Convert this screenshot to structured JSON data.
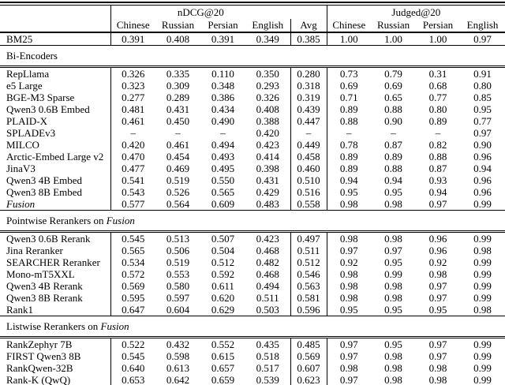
{
  "table": {
    "group_headers": {
      "ndcg": "nDCG@20",
      "judged": "Judged@20"
    },
    "column_headers": [
      "Chinese",
      "Russian",
      "Persian",
      "English",
      "Avg",
      "Chinese",
      "Russian",
      "Persian",
      "English"
    ],
    "baseline_row": {
      "label": "BM25",
      "italic": false,
      "values": [
        "0.391",
        "0.408",
        "0.391",
        "0.349",
        "0.385",
        "1.00",
        "1.00",
        "1.00",
        "0.97"
      ]
    },
    "sections": [
      {
        "title_prefix": "Bi-Encoders",
        "title_italic": "",
        "rows": [
          {
            "label": "RepLlama",
            "italic": false,
            "values": [
              "0.326",
              "0.335",
              "0.110",
              "0.350",
              "0.280",
              "0.73",
              "0.79",
              "0.31",
              "0.91"
            ]
          },
          {
            "label": "e5 Large",
            "italic": false,
            "values": [
              "0.323",
              "0.309",
              "0.348",
              "0.293",
              "0.318",
              "0.69",
              "0.69",
              "0.68",
              "0.80"
            ]
          },
          {
            "label": "BGE-M3 Sparse",
            "italic": false,
            "values": [
              "0.277",
              "0.289",
              "0.386",
              "0.326",
              "0.319",
              "0.71",
              "0.65",
              "0.77",
              "0.85"
            ]
          },
          {
            "label": "Qwen3 0.6B Embed",
            "italic": false,
            "values": [
              "0.481",
              "0.431",
              "0.434",
              "0.408",
              "0.439",
              "0.89",
              "0.88",
              "0.80",
              "0.95"
            ]
          },
          {
            "label": "PLAID-X",
            "italic": false,
            "values": [
              "0.461",
              "0.450",
              "0.490",
              "0.388",
              "0.447",
              "0.88",
              "0.90",
              "0.89",
              "0.77"
            ]
          },
          {
            "label": "SPLADEv3",
            "italic": false,
            "values": [
              "–",
              "–",
              "–",
              "0.420",
              "–",
              "–",
              "–",
              "–",
              "0.97"
            ]
          },
          {
            "label": "MILCO",
            "italic": false,
            "values": [
              "0.420",
              "0.461",
              "0.494",
              "0.423",
              "0.449",
              "0.78",
              "0.87",
              "0.82",
              "0.90"
            ]
          },
          {
            "label": "Arctic-Embed Large v2",
            "italic": false,
            "values": [
              "0.470",
              "0.454",
              "0.493",
              "0.414",
              "0.458",
              "0.89",
              "0.89",
              "0.88",
              "0.96"
            ]
          },
          {
            "label": "JinaV3",
            "italic": false,
            "values": [
              "0.477",
              "0.469",
              "0.495",
              "0.398",
              "0.460",
              "0.89",
              "0.88",
              "0.87",
              "0.94"
            ]
          },
          {
            "label": "Qwen3 4B Embed",
            "italic": false,
            "values": [
              "0.541",
              "0.519",
              "0.550",
              "0.431",
              "0.510",
              "0.94",
              "0.94",
              "0.93",
              "0.96"
            ]
          },
          {
            "label": "Qwen3 8B Embed",
            "italic": false,
            "values": [
              "0.543",
              "0.526",
              "0.565",
              "0.429",
              "0.516",
              "0.95",
              "0.95",
              "0.94",
              "0.96"
            ]
          },
          {
            "label": "Fusion",
            "italic": true,
            "values": [
              "0.577",
              "0.564",
              "0.609",
              "0.483",
              "0.558",
              "0.98",
              "0.98",
              "0.97",
              "0.99"
            ]
          }
        ]
      },
      {
        "title_prefix": "Pointwise Rerankers on ",
        "title_italic": "Fusion",
        "rows": [
          {
            "label": "Qwen3 0.6B Rerank",
            "italic": false,
            "values": [
              "0.545",
              "0.513",
              "0.507",
              "0.423",
              "0.497",
              "0.98",
              "0.98",
              "0.96",
              "0.99"
            ]
          },
          {
            "label": "Jina Reranker",
            "italic": false,
            "values": [
              "0.565",
              "0.506",
              "0.504",
              "0.468",
              "0.511",
              "0.97",
              "0.97",
              "0.96",
              "0.98"
            ]
          },
          {
            "label": "SEARCHER Reranker",
            "italic": false,
            "values": [
              "0.534",
              "0.519",
              "0.512",
              "0.482",
              "0.512",
              "0.92",
              "0.95",
              "0.92",
              "0.99"
            ]
          },
          {
            "label": "Mono-mT5XXL",
            "italic": false,
            "values": [
              "0.572",
              "0.553",
              "0.592",
              "0.468",
              "0.546",
              "0.98",
              "0.99",
              "0.98",
              "0.99"
            ]
          },
          {
            "label": "Qwen3 4B Rerank",
            "italic": false,
            "values": [
              "0.569",
              "0.580",
              "0.611",
              "0.494",
              "0.563",
              "0.98",
              "0.98",
              "0.97",
              "0.99"
            ]
          },
          {
            "label": "Qwen3 8B Rerank",
            "italic": false,
            "values": [
              "0.595",
              "0.597",
              "0.620",
              "0.511",
              "0.581",
              "0.98",
              "0.98",
              "0.97",
              "0.99"
            ]
          },
          {
            "label": "Rank1",
            "italic": false,
            "values": [
              "0.647",
              "0.604",
              "0.629",
              "0.503",
              "0.596",
              "0.95",
              "0.95",
              "0.95",
              "0.98"
            ]
          }
        ]
      },
      {
        "title_prefix": "Listwise Rerankers on ",
        "title_italic": "Fusion",
        "rows": [
          {
            "label": "RankZephyr 7B",
            "italic": false,
            "values": [
              "0.522",
              "0.432",
              "0.552",
              "0.435",
              "0.485",
              "0.97",
              "0.95",
              "0.97",
              "0.99"
            ]
          },
          {
            "label": "FIRST Qwen3 8B",
            "italic": false,
            "values": [
              "0.545",
              "0.598",
              "0.615",
              "0.518",
              "0.569",
              "0.97",
              "0.98",
              "0.97",
              "0.99"
            ]
          },
          {
            "label": "RankQwen-32B",
            "italic": false,
            "values": [
              "0.640",
              "0.613",
              "0.657",
              "0.517",
              "0.607",
              "0.98",
              "0.98",
              "0.98",
              "0.99"
            ]
          },
          {
            "label": "Rank-K (QwQ)",
            "italic": false,
            "values": [
              "0.653",
              "0.642",
              "0.659",
              "0.539",
              "0.623",
              "0.97",
              "0.98",
              "0.98",
              "0.99"
            ]
          }
        ]
      }
    ]
  }
}
